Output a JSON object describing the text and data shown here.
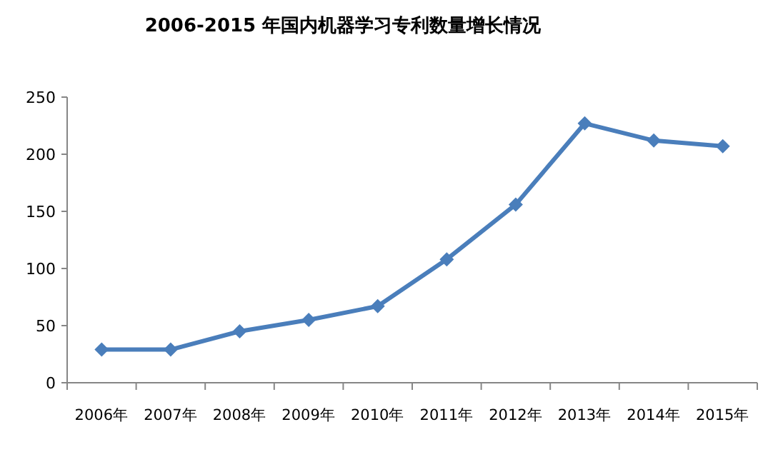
{
  "chart_data": {
    "type": "line",
    "title": "2006-2015 年国内机器学习专利数量增长情况",
    "categories": [
      "2006年",
      "2007年",
      "2008年",
      "2009年",
      "2010年",
      "2011年",
      "2012年",
      "2013年",
      "2014年",
      "2015年"
    ],
    "series": [
      {
        "color": "#4a7ebb",
        "values": [
          29,
          29,
          45,
          55,
          67,
          108,
          156,
          227,
          212,
          207
        ]
      }
    ],
    "ylim": [
      0,
      250
    ],
    "yticks": [
      0,
      50,
      100,
      150,
      200,
      250
    ],
    "marker": "diamond",
    "line_style": "solid"
  }
}
